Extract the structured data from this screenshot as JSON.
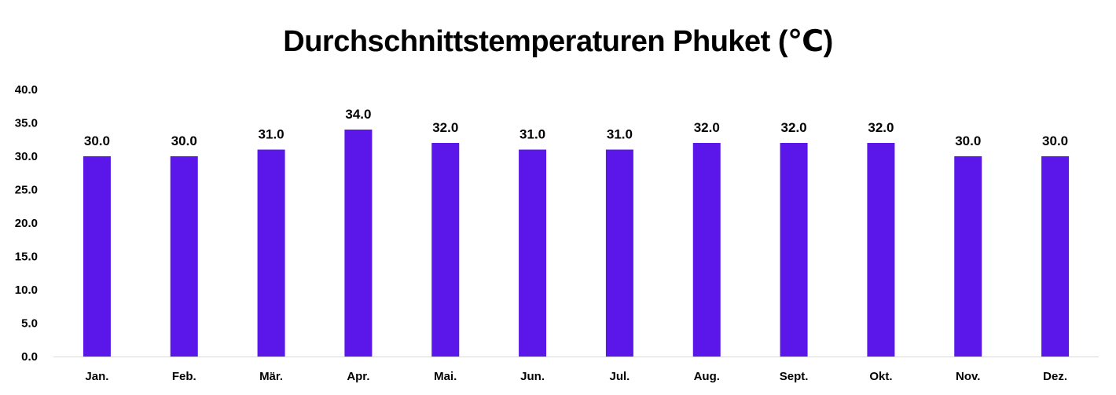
{
  "chart_data": {
    "type": "bar",
    "title": "Durchschnittstemperaturen Phuket (℃)",
    "xlabel": "",
    "ylabel": "",
    "categories": [
      "Jan.",
      "Feb.",
      "Mär.",
      "Apr.",
      "Mai.",
      "Jun.",
      "Jul.",
      "Aug.",
      "Sept.",
      "Okt.",
      "Nov.",
      "Dez."
    ],
    "values": [
      30.0,
      30.0,
      31.0,
      34.0,
      32.0,
      31.0,
      31.0,
      32.0,
      32.0,
      32.0,
      30.0,
      30.0
    ],
    "data_labels": [
      "30.0",
      "30.0",
      "31.0",
      "34.0",
      "32.0",
      "31.0",
      "31.0",
      "32.0",
      "32.0",
      "32.0",
      "30.0",
      "30.0"
    ],
    "ylim": [
      0,
      40
    ],
    "yticks": [
      "0.0",
      "5.0",
      "10.0",
      "15.0",
      "20.0",
      "25.0",
      "30.0",
      "35.0",
      "40.0"
    ],
    "grid": false,
    "legend": "none",
    "bar_color": "#5b17ea"
  }
}
